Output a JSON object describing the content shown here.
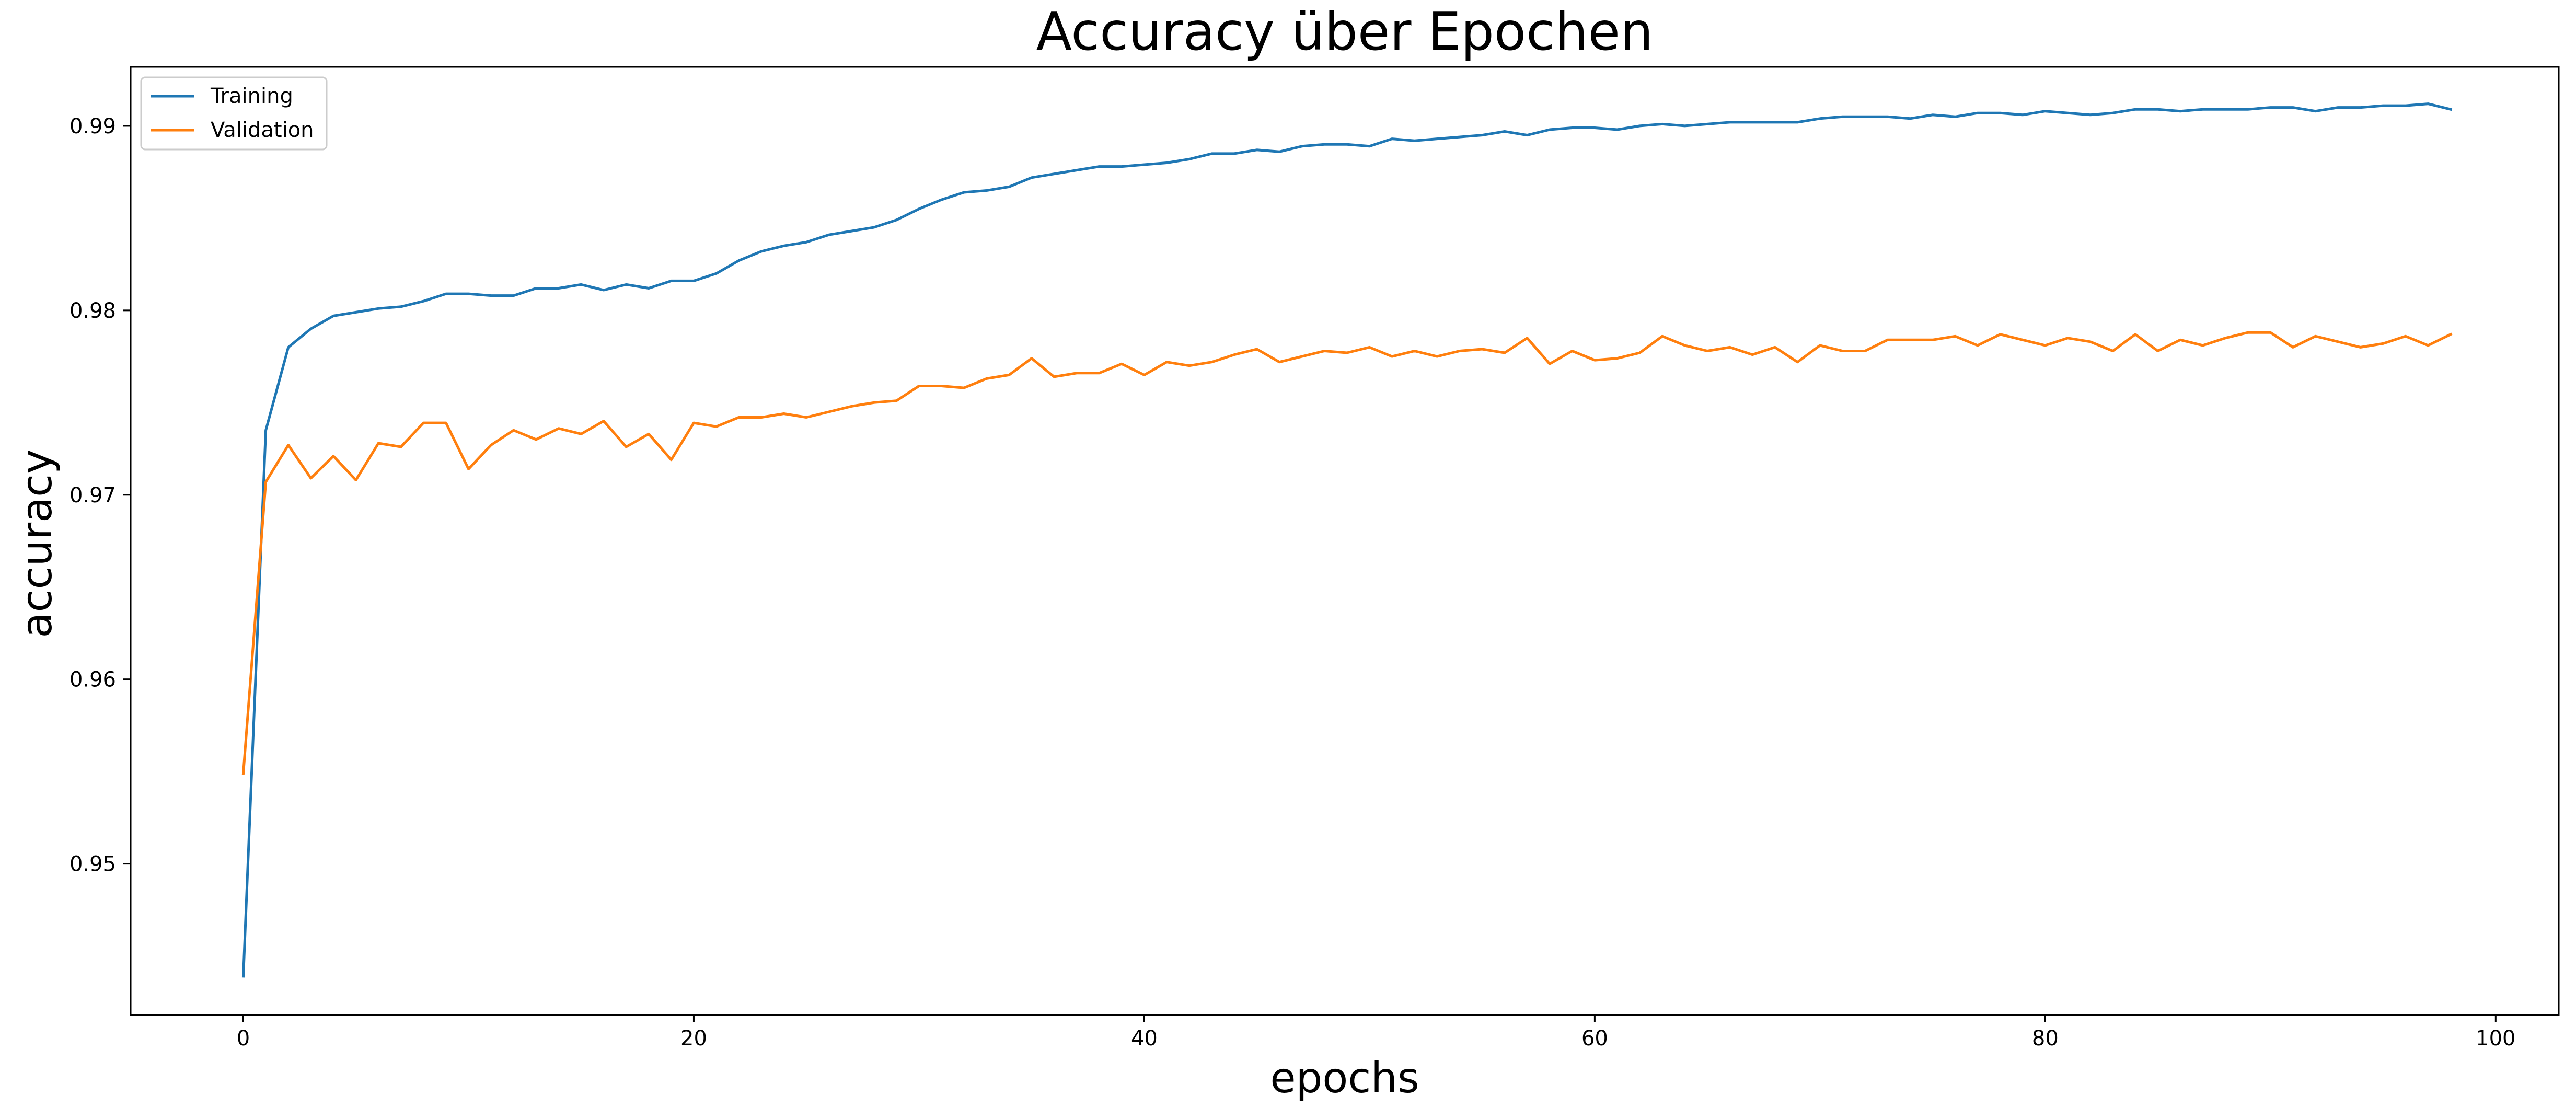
{
  "chart_data": {
    "type": "line",
    "title": "Accuracy über Epochen",
    "xlabel": "epochs",
    "ylabel": "accuracy",
    "xlim": [
      -5,
      102.8
    ],
    "ylim": [
      0.9418,
      0.9932
    ],
    "xticks": [
      0,
      20,
      40,
      60,
      80,
      100
    ],
    "xtick_labels": [
      "0",
      "20",
      "40",
      "60",
      "80",
      "100"
    ],
    "yticks": [
      0.95,
      0.96,
      0.97,
      0.98,
      0.99
    ],
    "ytick_labels": [
      "0.95",
      "0.96",
      "0.97",
      "0.98",
      "0.99"
    ],
    "grid": false,
    "legend_position": "upper left",
    "series": [
      {
        "name": "Training",
        "color": "#1f77b4",
        "x": [
          0,
          1,
          2,
          3,
          4,
          5,
          6,
          7,
          8,
          9,
          10,
          11,
          12,
          13,
          14,
          15,
          16,
          17,
          18,
          19,
          20,
          21,
          22,
          23,
          24,
          25,
          26,
          27,
          28,
          29,
          30,
          31,
          32,
          33,
          34,
          35,
          36,
          37,
          38,
          39,
          40,
          41,
          42,
          43,
          44,
          45,
          46,
          47,
          48,
          49,
          50,
          51,
          52,
          53,
          54,
          55,
          56,
          57,
          58,
          59,
          60,
          61,
          62,
          63,
          64,
          65,
          66,
          67,
          68,
          69,
          70,
          71,
          72,
          73,
          74,
          75,
          76,
          77,
          78,
          79,
          80,
          81,
          82,
          83,
          84,
          85,
          86,
          87,
          88,
          89,
          90,
          91,
          92,
          93,
          94,
          95,
          96,
          97,
          98
        ],
        "values": [
          0.9439,
          0.9735,
          0.978,
          0.979,
          0.9797,
          0.9799,
          0.9801,
          0.9802,
          0.9805,
          0.9809,
          0.9809,
          0.9808,
          0.9808,
          0.9812,
          0.9812,
          0.9814,
          0.9811,
          0.9814,
          0.9812,
          0.9816,
          0.9816,
          0.982,
          0.9827,
          0.9832,
          0.9835,
          0.9837,
          0.9841,
          0.9843,
          0.9845,
          0.9849,
          0.9855,
          0.986,
          0.9864,
          0.9865,
          0.9867,
          0.9872,
          0.9874,
          0.9876,
          0.9878,
          0.9878,
          0.9879,
          0.988,
          0.9882,
          0.9885,
          0.9885,
          0.9887,
          0.9886,
          0.9889,
          0.989,
          0.989,
          0.9889,
          0.9893,
          0.9892,
          0.9893,
          0.9894,
          0.9895,
          0.9897,
          0.9895,
          0.9898,
          0.9899,
          0.9899,
          0.9898,
          0.99,
          0.9901,
          0.99,
          0.9901,
          0.9902,
          0.9902,
          0.9902,
          0.9902,
          0.9904,
          0.9905,
          0.9905,
          0.9905,
          0.9904,
          0.9906,
          0.9905,
          0.9907,
          0.9907,
          0.9906,
          0.9908,
          0.9907,
          0.9906,
          0.9907,
          0.9909,
          0.9909,
          0.9908,
          0.9909,
          0.9909,
          0.9909,
          0.991,
          0.991,
          0.9908,
          0.991,
          0.991,
          0.9911,
          0.9911,
          0.9912,
          0.9909
        ]
      },
      {
        "name": "Validation",
        "color": "#ff7f0e",
        "x": [
          0,
          1,
          2,
          3,
          4,
          5,
          6,
          7,
          8,
          9,
          10,
          11,
          12,
          13,
          14,
          15,
          16,
          17,
          18,
          19,
          20,
          21,
          22,
          23,
          24,
          25,
          26,
          27,
          28,
          29,
          30,
          31,
          32,
          33,
          34,
          35,
          36,
          37,
          38,
          39,
          40,
          41,
          42,
          43,
          44,
          45,
          46,
          47,
          48,
          49,
          50,
          51,
          52,
          53,
          54,
          55,
          56,
          57,
          58,
          59,
          60,
          61,
          62,
          63,
          64,
          65,
          66,
          67,
          68,
          69,
          70,
          71,
          72,
          73,
          74,
          75,
          76,
          77,
          78,
          79,
          80,
          81,
          82,
          83,
          84,
          85,
          86,
          87,
          88,
          89,
          90,
          91,
          92,
          93,
          94,
          95,
          96,
          97,
          98
        ],
        "values": [
          0.9549,
          0.9707,
          0.9727,
          0.9709,
          0.9721,
          0.9708,
          0.9728,
          0.9726,
          0.9739,
          0.9739,
          0.9714,
          0.9727,
          0.9735,
          0.973,
          0.9736,
          0.9733,
          0.974,
          0.9726,
          0.9733,
          0.9719,
          0.9739,
          0.9737,
          0.9742,
          0.9742,
          0.9744,
          0.9742,
          0.9745,
          0.9748,
          0.975,
          0.9751,
          0.9759,
          0.9759,
          0.9758,
          0.9763,
          0.9765,
          0.9774,
          0.9764,
          0.9766,
          0.9766,
          0.9771,
          0.9765,
          0.9772,
          0.977,
          0.9772,
          0.9776,
          0.9779,
          0.9772,
          0.9775,
          0.9778,
          0.9777,
          0.978,
          0.9775,
          0.9778,
          0.9775,
          0.9778,
          0.9779,
          0.9777,
          0.9785,
          0.9771,
          0.9778,
          0.9773,
          0.9774,
          0.9777,
          0.9786,
          0.9781,
          0.9778,
          0.978,
          0.9776,
          0.978,
          0.9772,
          0.9781,
          0.9778,
          0.9778,
          0.9784,
          0.9784,
          0.9784,
          0.9786,
          0.9781,
          0.9787,
          0.9784,
          0.9781,
          0.9785,
          0.9783,
          0.9778,
          0.9787,
          0.9778,
          0.9784,
          0.9781,
          0.9785,
          0.9788,
          0.9788,
          0.978,
          0.9786,
          0.9783,
          0.978,
          0.9782,
          0.9786,
          0.9781,
          0.9787
        ]
      }
    ]
  }
}
